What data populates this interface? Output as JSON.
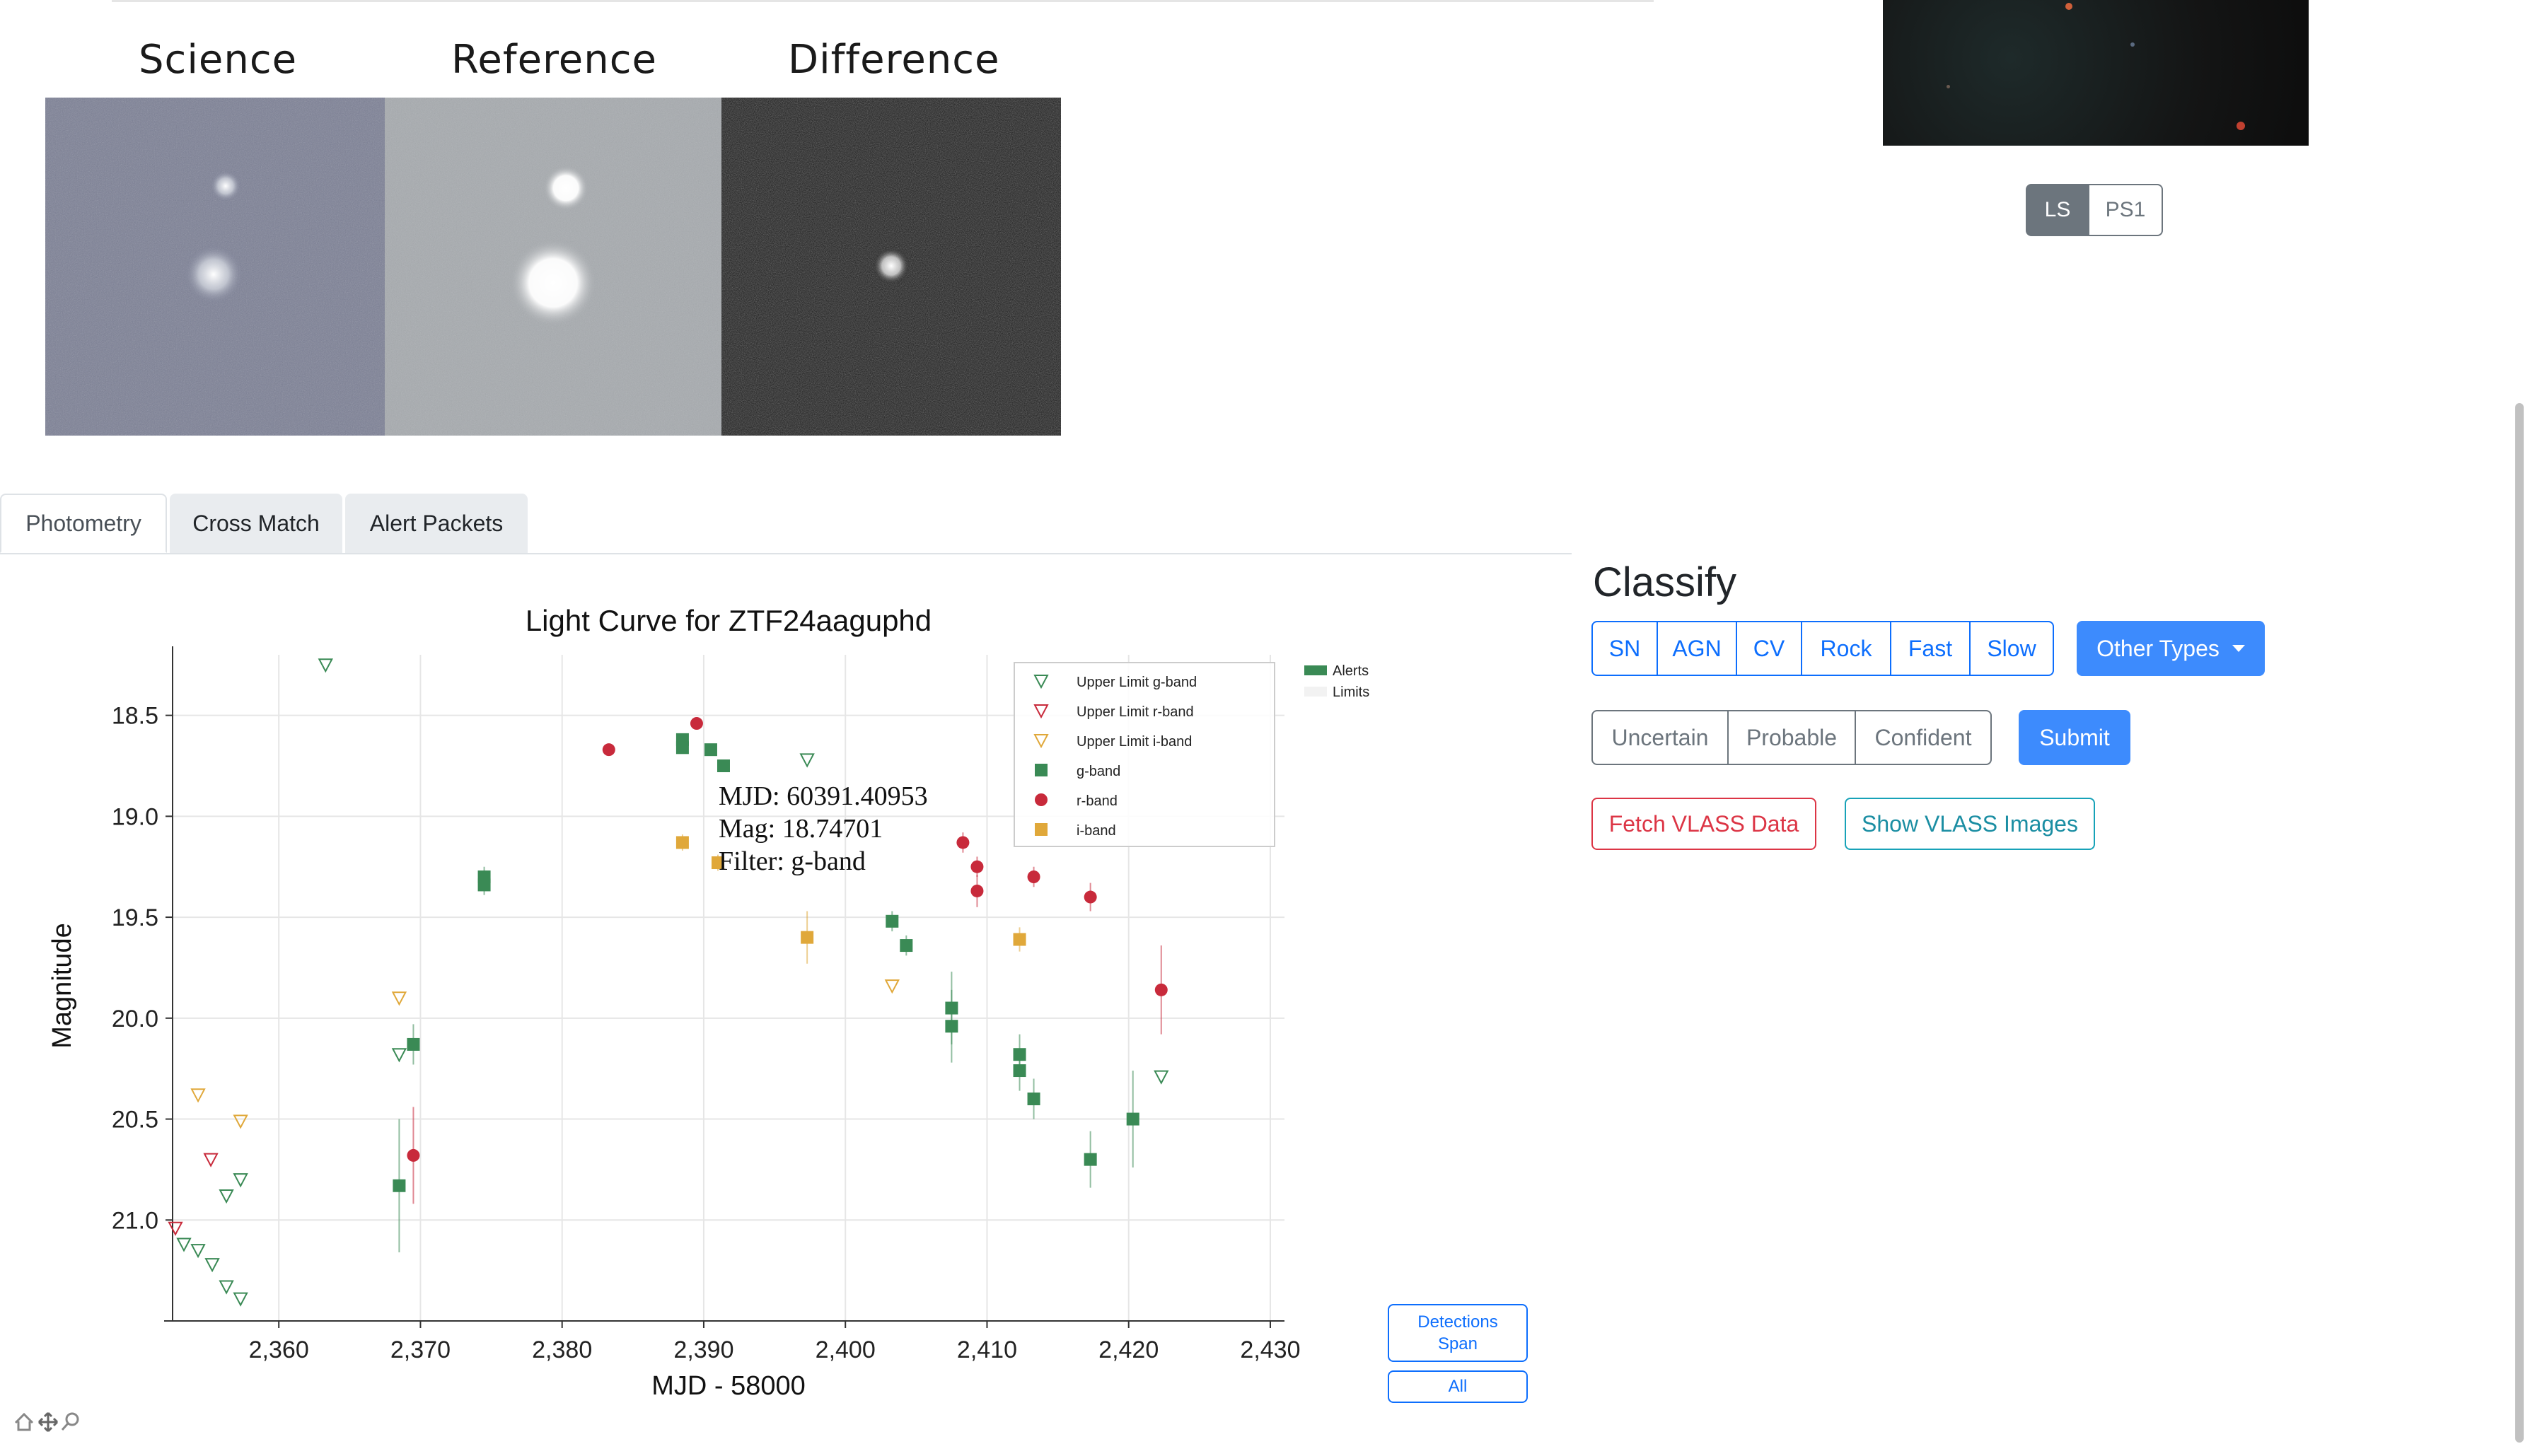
{
  "cutouts": {
    "labels": [
      "Science",
      "Reference",
      "Difference"
    ]
  },
  "survey_toggle": {
    "options": [
      "LS",
      "PS1"
    ],
    "active": "LS"
  },
  "tabs": [
    "Photometry",
    "Cross Match",
    "Alert Packets"
  ],
  "active_tab": "Photometry",
  "classify": {
    "title": "Classify",
    "types": [
      "SN",
      "AGN",
      "CV",
      "Rock",
      "Fast",
      "Slow"
    ],
    "other_types_label": "Other Types",
    "confidence": [
      "Uncertain",
      "Probable",
      "Confident"
    ],
    "submit_label": "Submit",
    "fetch_vlass_label": "Fetch VLASS Data",
    "show_vlass_label": "Show VLASS Images"
  },
  "span_buttons": {
    "detections": "Detections\nSpan",
    "all": "All"
  },
  "colors": {
    "g": "#3a8a55",
    "r": "#c82a3b",
    "i": "#e0a83a",
    "primary": "#0d6efd",
    "danger": "#dc3545",
    "info": "#0dcaf0",
    "active_toggle": "#6c757d"
  },
  "icons": [
    "home-icon",
    "pan-icon",
    "zoom-icon"
  ],
  "chart_data": {
    "type": "scatter",
    "title": "Light Curve for ZTF24aaguphd",
    "xlabel": "MJD - 58000",
    "ylabel": "Magnitude",
    "xlim": [
      2352.5,
      2431
    ],
    "ylim": [
      21.5,
      18.2
    ],
    "y_inverted": true,
    "grid": true,
    "xticks": [
      "2,360",
      "2,370",
      "2,380",
      "2,390",
      "2,400",
      "2,410",
      "2,420",
      "2,430"
    ],
    "yticks": [
      "18.5",
      "19.0",
      "19.5",
      "20.0",
      "20.5",
      "21.0"
    ],
    "legend": {
      "placement": "top-right",
      "entries": [
        "Upper Limit g-band",
        "Upper Limit r-band",
        "Upper Limit i-band",
        "g-band",
        "r-band",
        "i-band"
      ]
    },
    "outer_legend": [
      "Alerts",
      "Limits"
    ],
    "tooltip": [
      "MJD: 60391.40953",
      "Mag: 18.74701",
      "Filter: g-band"
    ],
    "series": [
      {
        "name": "g-band",
        "marker": "square",
        "points": [
          {
            "x": 2368.5,
            "y": 20.83,
            "err": 0.33
          },
          {
            "x": 2369.5,
            "y": 20.13,
            "err": 0.1
          },
          {
            "x": 2374.5,
            "y": 19.3,
            "err": 0.05
          },
          {
            "x": 2374.5,
            "y": 19.34,
            "err": 0.05
          },
          {
            "x": 2388.5,
            "y": 18.62,
            "err": 0.03
          },
          {
            "x": 2388.5,
            "y": 18.66,
            "err": 0.03
          },
          {
            "x": 2390.5,
            "y": 18.67,
            "err": 0.03
          },
          {
            "x": 2391.4,
            "y": 18.75,
            "err": 0.03
          },
          {
            "x": 2403.3,
            "y": 19.52,
            "err": 0.05
          },
          {
            "x": 2404.3,
            "y": 19.64,
            "err": 0.05
          },
          {
            "x": 2407.5,
            "y": 19.95,
            "err": 0.18
          },
          {
            "x": 2407.5,
            "y": 20.04,
            "err": 0.18
          },
          {
            "x": 2412.3,
            "y": 20.18,
            "err": 0.1
          },
          {
            "x": 2412.3,
            "y": 20.26,
            "err": 0.1
          },
          {
            "x": 2413.3,
            "y": 20.4,
            "err": 0.1
          },
          {
            "x": 2417.3,
            "y": 20.7,
            "err": 0.14
          },
          {
            "x": 2420.3,
            "y": 20.5,
            "err": 0.24
          }
        ]
      },
      {
        "name": "r-band",
        "marker": "circle",
        "points": [
          {
            "x": 2369.5,
            "y": 20.68,
            "err": 0.24
          },
          {
            "x": 2383.3,
            "y": 18.67,
            "err": 0.03
          },
          {
            "x": 2389.5,
            "y": 18.54,
            "err": 0.03
          },
          {
            "x": 2408.3,
            "y": 19.13,
            "err": 0.05
          },
          {
            "x": 2409.3,
            "y": 19.25,
            "err": 0.05
          },
          {
            "x": 2409.3,
            "y": 19.37,
            "err": 0.08
          },
          {
            "x": 2413.3,
            "y": 19.3,
            "err": 0.05
          },
          {
            "x": 2417.3,
            "y": 19.4,
            "err": 0.07
          },
          {
            "x": 2422.3,
            "y": 19.86,
            "err": 0.22
          }
        ]
      },
      {
        "name": "i-band",
        "marker": "square",
        "points": [
          {
            "x": 2388.5,
            "y": 19.13,
            "err": 0.04
          },
          {
            "x": 2391.0,
            "y": 19.23,
            "err": 0.04
          },
          {
            "x": 2397.3,
            "y": 19.6,
            "err": 0.13
          },
          {
            "x": 2412.3,
            "y": 19.61,
            "err": 0.06
          }
        ]
      },
      {
        "name": "Upper Limit g-band",
        "marker": "triangle-down",
        "points": [
          {
            "x": 2363.3,
            "y": 18.25
          },
          {
            "x": 2397.3,
            "y": 18.72
          },
          {
            "x": 2368.5,
            "y": 20.18
          },
          {
            "x": 2353.3,
            "y": 21.12
          },
          {
            "x": 2354.3,
            "y": 21.15
          },
          {
            "x": 2355.3,
            "y": 21.22
          },
          {
            "x": 2356.3,
            "y": 21.33
          },
          {
            "x": 2357.3,
            "y": 21.39
          },
          {
            "x": 2356.3,
            "y": 20.88
          },
          {
            "x": 2357.3,
            "y": 20.8
          },
          {
            "x": 2422.3,
            "y": 20.29
          }
        ]
      },
      {
        "name": "Upper Limit r-band",
        "marker": "triangle-down",
        "points": [
          {
            "x": 2352.7,
            "y": 21.04
          },
          {
            "x": 2355.2,
            "y": 20.7
          }
        ]
      },
      {
        "name": "Upper Limit i-band",
        "marker": "triangle-down",
        "points": [
          {
            "x": 2354.3,
            "y": 20.38
          },
          {
            "x": 2357.3,
            "y": 20.51
          },
          {
            "x": 2368.5,
            "y": 19.9
          },
          {
            "x": 2403.3,
            "y": 19.84
          }
        ]
      }
    ]
  }
}
